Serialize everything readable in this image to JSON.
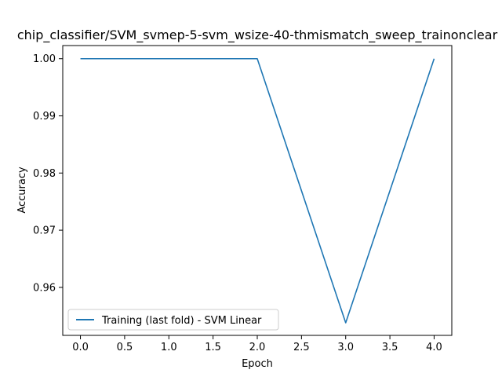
{
  "chart_data": {
    "type": "line",
    "title": "chip_classifier/SVM_svmep-5-svm_wsize-40-thmismatch_sweep_trainonclear",
    "xlabel": "Epoch",
    "ylabel": "Accuracy",
    "xlim": [
      -0.2,
      4.2
    ],
    "ylim": [
      0.9516,
      1.0023
    ],
    "x_ticks": [
      0.0,
      0.5,
      1.0,
      1.5,
      2.0,
      2.5,
      3.0,
      3.5,
      4.0
    ],
    "x_tick_labels": [
      "0.0",
      "0.5",
      "1.0",
      "1.5",
      "2.0",
      "2.5",
      "3.0",
      "3.5",
      "4.0"
    ],
    "y_ticks": [
      0.96,
      0.97,
      0.98,
      0.99,
      1.0
    ],
    "y_tick_labels": [
      "0.96",
      "0.97",
      "0.98",
      "0.99",
      "1.00"
    ],
    "grid": false,
    "legend_position": "lower-left",
    "series": [
      {
        "name": "Training (last fold) - SVM Linear",
        "color": "#1f77b4",
        "x": [
          0,
          1,
          2,
          3,
          4
        ],
        "y": [
          1.0,
          1.0,
          1.0,
          0.9538,
          1.0
        ]
      }
    ]
  }
}
